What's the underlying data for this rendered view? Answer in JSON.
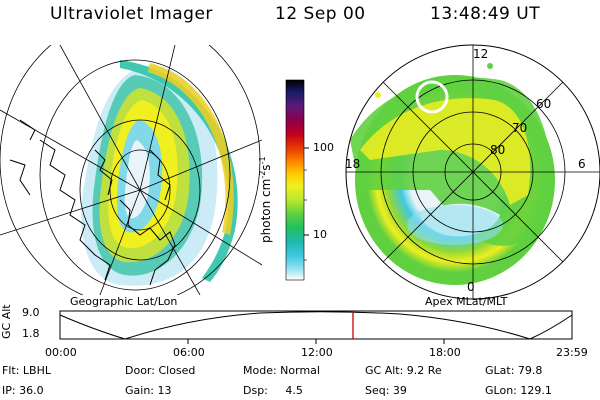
{
  "header": {
    "instrument": "Ultraviolet Imager",
    "date": "12 Sep 00",
    "time": "13:48:49 UT"
  },
  "left_panel": {
    "caption": "Geographic Lat/Lon"
  },
  "right_panel": {
    "caption": "Apex MLat/MLT",
    "mlt_labels": [
      "12",
      "18",
      "6",
      "0"
    ],
    "mlat_labels": [
      "60",
      "70",
      "80"
    ]
  },
  "colorbar": {
    "unit_label": "photon cm",
    "exp1": "-2",
    "mid": "s",
    "exp2": "-1",
    "ticks": [
      "100",
      "10"
    ],
    "colors": [
      "#000000",
      "#1a1a66",
      "#5a1a7a",
      "#8a004a",
      "#c00020",
      "#e83a00",
      "#ff8800",
      "#ffcc00",
      "#f0ef20",
      "#b8e830",
      "#60d040",
      "#20c060",
      "#20b8b0",
      "#40c8e0",
      "#90e0f0",
      "#d8f0f8",
      "#ffffff"
    ]
  },
  "timeline": {
    "axis_label": "GC Alt",
    "y_ticks": [
      "9.0",
      "1.8"
    ],
    "x_ticks": [
      "00:00",
      "06:00",
      "12:00",
      "18:00",
      "23:59"
    ],
    "marker_time": "13:48"
  },
  "info": {
    "row1": {
      "flt": "Flt: LBHL",
      "door": "Door: Closed",
      "mode": "Mode: Normal",
      "gcalt": "GC Alt: 9.2 Re",
      "glat": "GLat:  79.8"
    },
    "row2": {
      "ip": "IP: 36.0",
      "gain": "Gain: 13",
      "dsp": "Dsp:     4.5",
      "seq": "Seq: 39",
      "glon": "GLon: 129.1"
    }
  }
}
